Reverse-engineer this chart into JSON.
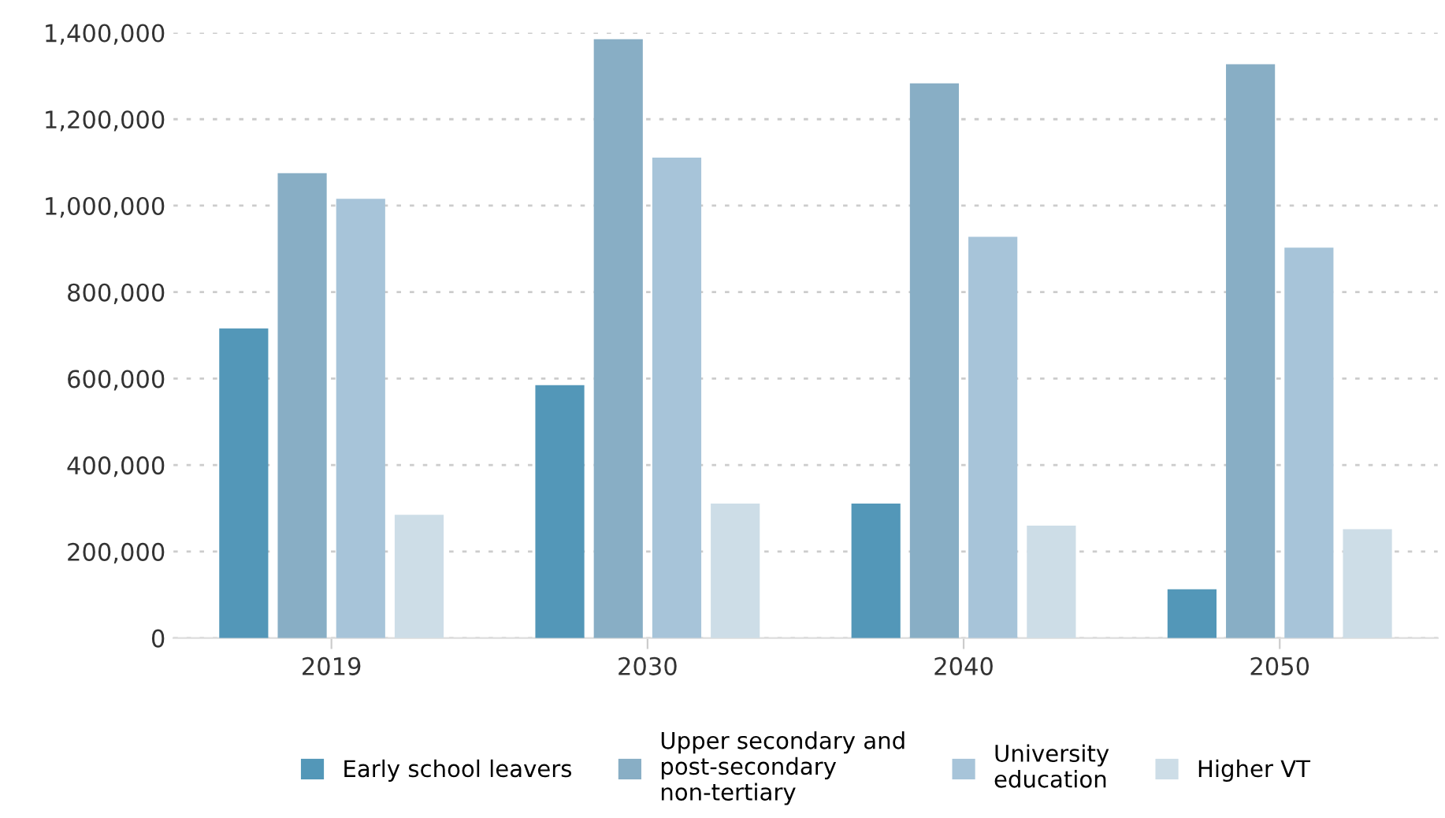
{
  "chart_data": {
    "type": "bar",
    "categories": [
      "2019",
      "2030",
      "2040",
      "2050"
    ],
    "series": [
      {
        "name": "Early school leavers",
        "color": "#5397b8",
        "values": [
          716000,
          585000,
          311000,
          113000
        ]
      },
      {
        "name": "Upper secondary and\npost-secondary\nnon-tertiary",
        "color": "#88aec5",
        "values": [
          1075000,
          1385000,
          1283000,
          1327000
        ]
      },
      {
        "name": "University\neducation",
        "color": "#a7c4d9",
        "values": [
          1016000,
          1111000,
          928000,
          903000
        ]
      },
      {
        "name": "Higher VT",
        "color": "#cddde7",
        "values": [
          285000,
          311000,
          260000,
          252000
        ]
      }
    ],
    "ylim": [
      0,
      1400000
    ],
    "yticks": [
      {
        "value": 0,
        "label": "0"
      },
      {
        "value": 200000,
        "label": "200,000"
      },
      {
        "value": 400000,
        "label": "400,000"
      },
      {
        "value": 600000,
        "label": "600,000"
      },
      {
        "value": 800000,
        "label": "800,000"
      },
      {
        "value": 1000000,
        "label": "1,000,000"
      },
      {
        "value": 1200000,
        "label": "1,200,000"
      },
      {
        "value": 1400000,
        "label": "1,400,000"
      }
    ],
    "grid": "y",
    "legend": "bottom"
  }
}
